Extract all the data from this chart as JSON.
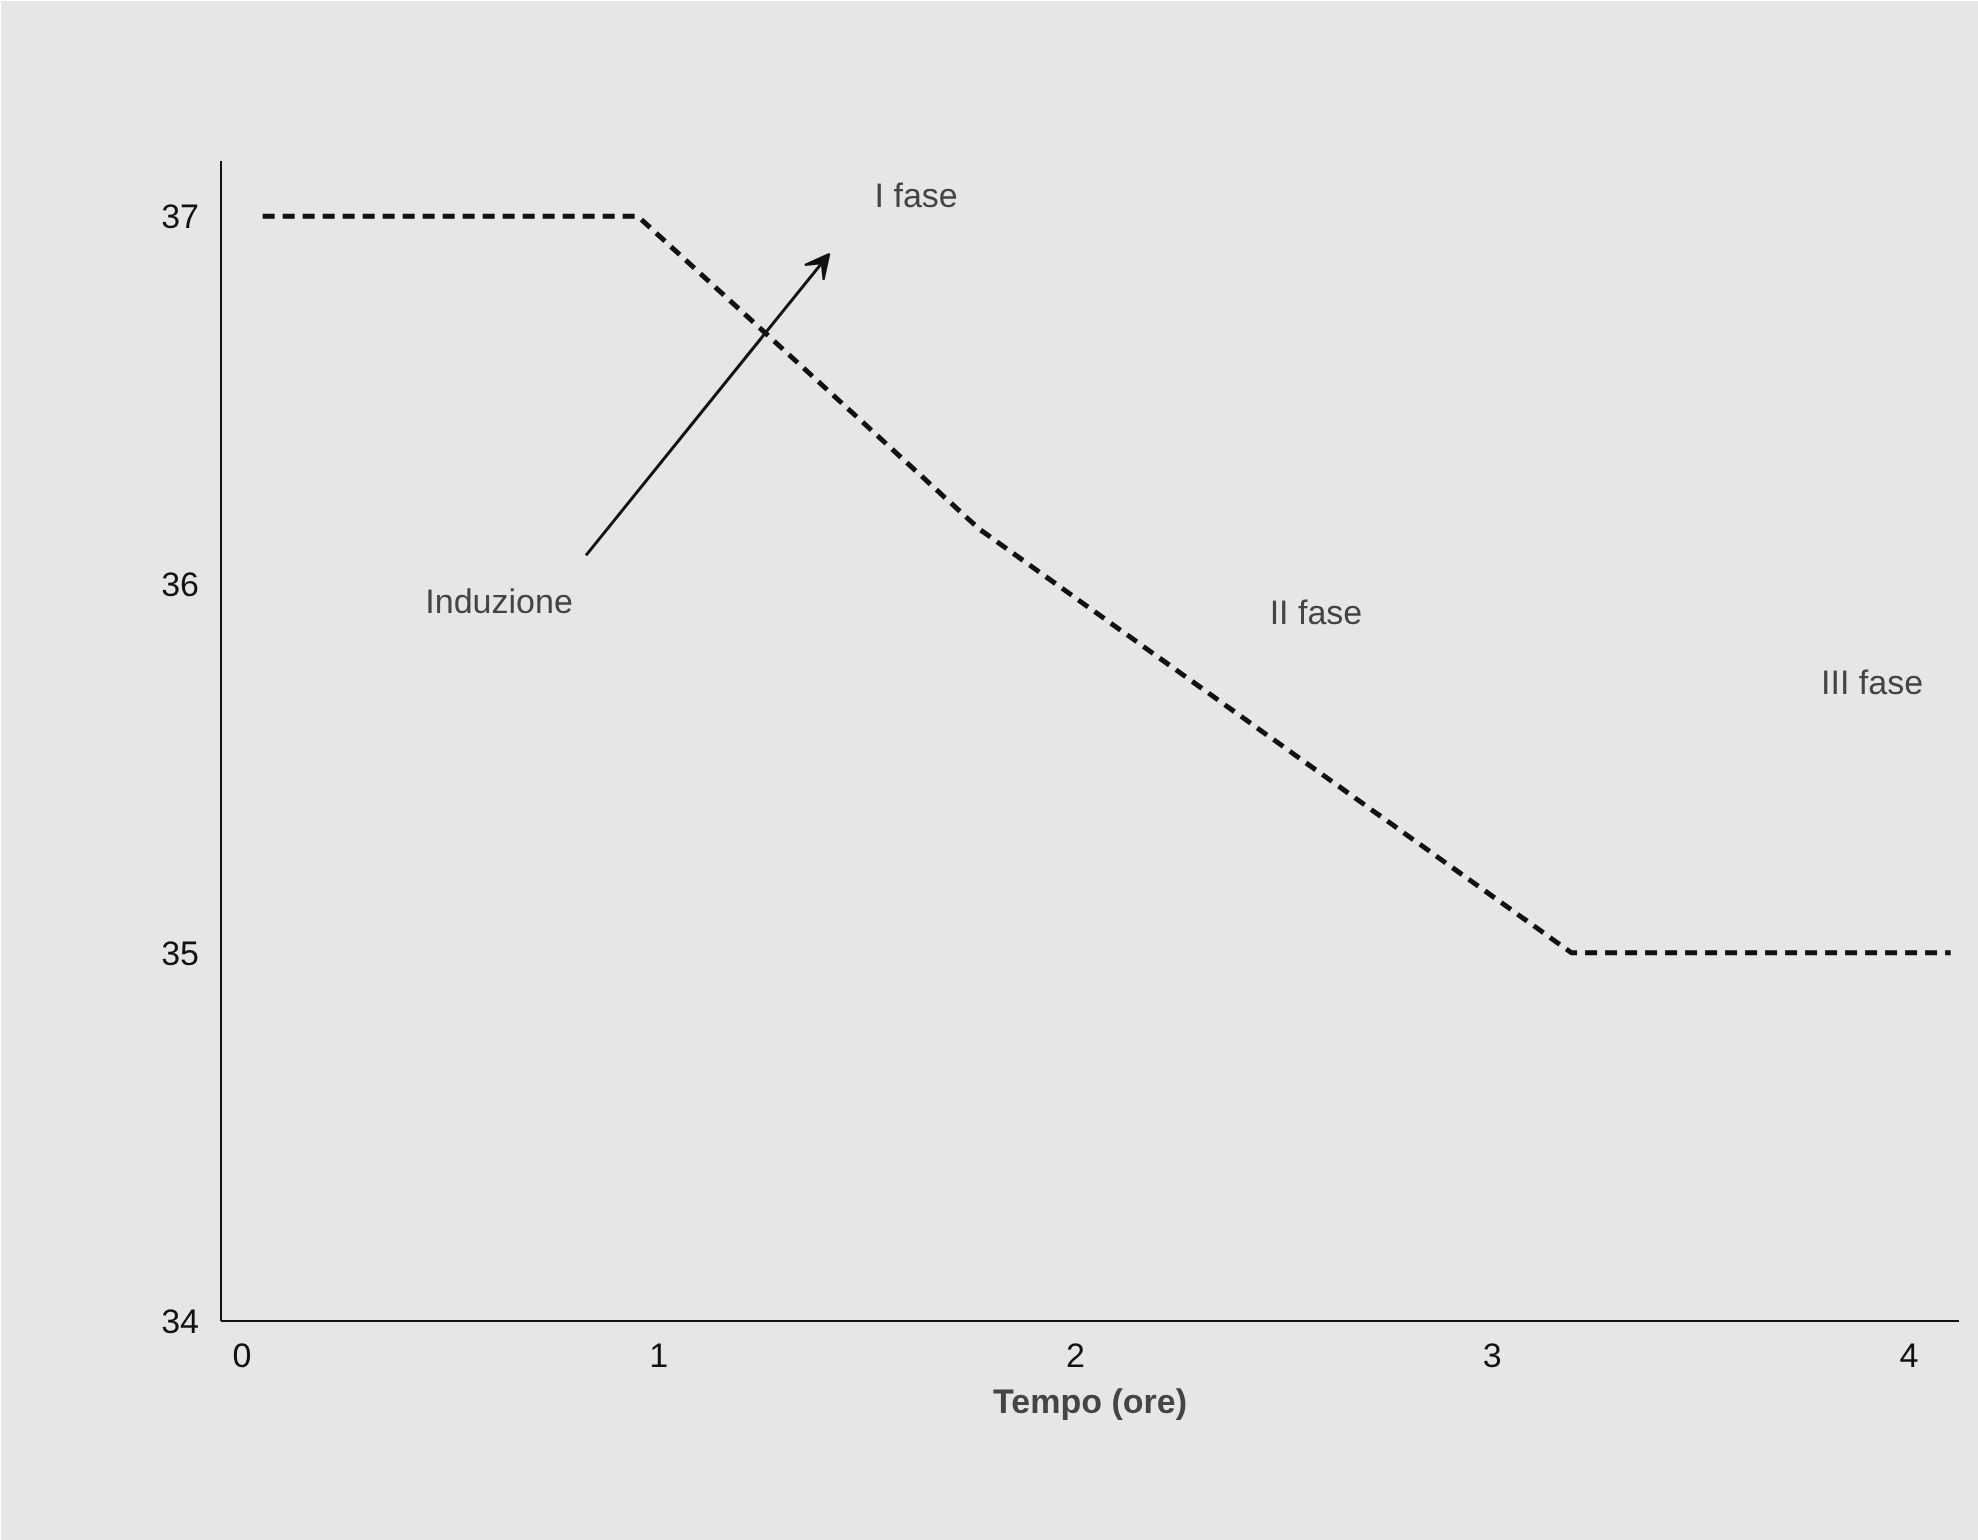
{
  "chart_data": {
    "type": "line",
    "xlabel": "Tempo (ore)",
    "x": [
      0.05,
      0.95,
      1.77,
      3.19,
      4.1
    ],
    "series": [
      {
        "color": "#111111",
        "values": [
          37,
          37,
          36.15,
          35.0,
          35.0
        ]
      }
    ],
    "line_style": "dashed",
    "marker": "none",
    "xlim": [
      -0.05,
      4.12
    ],
    "ylim": [
      34,
      37.15
    ],
    "xticks": [
      0,
      1,
      2,
      3,
      4
    ],
    "yticks": [
      34,
      35,
      36,
      37
    ],
    "annotations": [
      "I fase",
      "Induzione",
      "II fase",
      "III fase"
    ]
  }
}
